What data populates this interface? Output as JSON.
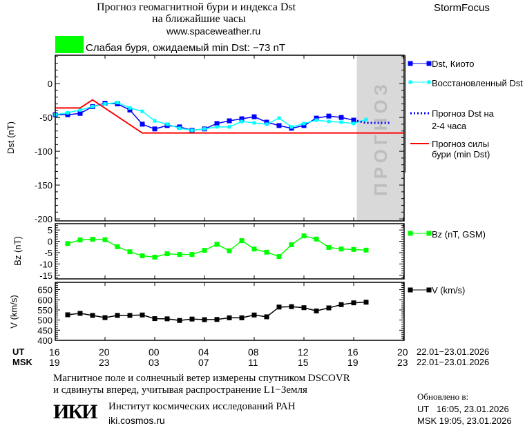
{
  "header": {
    "title_line1": "Прогноз геомагнитной бури и индекса Dst",
    "title_line2": "на ближайшие часы",
    "website": "www.spaceweather.ru",
    "brand": "StormFocus",
    "status_text": "Слабая буря, ожидаемый min Dst: −73 nT",
    "status_color": "#00ff00"
  },
  "forecast_zone_label": "ПРОГНОЗ",
  "time_axis": {
    "ut_label": "UT",
    "msk_label": "MSK",
    "ut_ticks": [
      "16",
      "20",
      "00",
      "04",
      "08",
      "12",
      "16",
      "20"
    ],
    "msk_ticks": [
      "19",
      "23",
      "03",
      "07",
      "11",
      "15",
      "19",
      "23"
    ],
    "ut_dates": "22.01−23.01.2026",
    "msk_dates": "22.01−23.01.2026"
  },
  "chart_data": [
    {
      "type": "line",
      "ylabel": "Dst (nT)",
      "ylim": [
        -203,
        42
      ],
      "yticks": [
        0,
        -50,
        -100,
        -150,
        -200
      ],
      "xlim": [
        "22.01 16:00 UT",
        "23.01 20:00 UT"
      ],
      "forecast_region_start": "23.01 16:15 UT",
      "series": [
        {
          "name": "Dst, Киото",
          "color": "#0000ff",
          "marker": "square",
          "x": [
            "22.01 16:00",
            "22.01 17:00",
            "22.01 18:00",
            "22.01 19:00",
            "22.01 20:00",
            "22.01 21:00",
            "22.01 22:00",
            "22.01 23:00",
            "23.01 00:00",
            "23.01 01:00",
            "23.01 02:00",
            "23.01 03:00",
            "23.01 04:00",
            "23.01 05:00",
            "23.01 06:00",
            "23.01 07:00",
            "23.01 08:00",
            "23.01 09:00",
            "23.01 10:00",
            "23.01 11:00",
            "23.01 12:00",
            "23.01 13:00",
            "23.01 14:00",
            "23.01 15:00",
            "23.01 16:00"
          ],
          "values": [
            -46,
            -46,
            -44,
            -34,
            -29,
            -30,
            -39,
            -60,
            -67,
            -62,
            -64,
            -69,
            -67,
            -59,
            -55,
            -52,
            -49,
            -57,
            -62,
            -66,
            -62,
            -51,
            -48,
            -50,
            -54
          ]
        },
        {
          "name": "Восстановленный Dst",
          "color": "#00ffff",
          "marker": "square",
          "x": [
            "22.01 16:00",
            "22.01 17:00",
            "22.01 18:00",
            "22.01 19:00",
            "22.01 20:00",
            "22.01 21:00",
            "22.01 22:00",
            "22.01 23:00",
            "23.01 00:00",
            "23.01 01:00",
            "23.01 02:00",
            "23.01 03:00",
            "23.01 04:00",
            "23.01 05:00",
            "23.01 06:00",
            "23.01 07:00",
            "23.01 08:00",
            "23.01 09:00",
            "23.01 10:00",
            "23.01 11:00",
            "23.01 12:00",
            "23.01 13:00",
            "23.01 14:00",
            "23.01 15:00",
            "23.01 16:00",
            "23.01 17:00"
          ],
          "values": [
            -46,
            -43,
            -39,
            -34,
            -30,
            -28,
            -36,
            -41,
            -55,
            -60,
            -66,
            -69,
            -67,
            -64,
            -64,
            -56,
            -58,
            -60,
            -51,
            -64,
            -59,
            -54,
            -56,
            -57,
            -59,
            -53
          ]
        },
        {
          "name": "Прогноз Dst на 2-4 часа",
          "color": "#0000ff",
          "style": "dotted",
          "x": [
            "23.01 16:00",
            "23.01 17:00",
            "23.01 19:00"
          ],
          "values": [
            -54,
            -58,
            -58
          ]
        },
        {
          "name": "Прогноз силы бури (min Dst)",
          "color": "#ff0000",
          "x": [
            "22.01 16:00",
            "22.01 18:00",
            "22.01 19:00",
            "22.01 23:00",
            "23.01 20:00"
          ],
          "values": [
            -36,
            -36,
            -24,
            -73,
            -73
          ]
        }
      ]
    },
    {
      "type": "line",
      "ylabel": "Bz (nT)",
      "ylim": [
        -16.6,
        7.8
      ],
      "yticks": [
        5,
        0,
        -5,
        -10,
        -15
      ],
      "series": [
        {
          "name": "Bz (nT, GSM)",
          "color": "#00ff00",
          "marker": "square",
          "x": [
            "22.01 17:00",
            "22.01 18:00",
            "22.01 19:00",
            "22.01 20:00",
            "22.01 21:00",
            "22.01 22:00",
            "22.01 23:00",
            "23.01 00:00",
            "23.01 01:00",
            "23.01 02:00",
            "23.01 03:00",
            "23.01 04:00",
            "23.01 05:00",
            "23.01 06:00",
            "23.01 07:00",
            "23.01 08:00",
            "23.01 09:00",
            "23.01 10:00",
            "23.01 11:00",
            "23.01 12:00",
            "23.01 13:00",
            "23.01 14:00",
            "23.01 15:00",
            "23.01 16:00",
            "23.01 17:00"
          ],
          "values": [
            -1.0,
            0.6,
            0.9,
            0.7,
            -2.4,
            -4.6,
            -6.4,
            -7.0,
            -5.5,
            -5.8,
            -5.8,
            -4.0,
            -1.3,
            -4.2,
            0.3,
            -3.4,
            -4.8,
            -6.7,
            -1.5,
            2.4,
            1.0,
            -2.7,
            -3.4,
            -3.6,
            -3.9
          ]
        }
      ]
    },
    {
      "type": "line",
      "ylabel": "V (km/s)",
      "ylim": [
        400,
        686
      ],
      "yticks": [
        650,
        600,
        550,
        500,
        450,
        400
      ],
      "series": [
        {
          "name": "V (km/s)",
          "color": "#000000",
          "marker": "square",
          "x": [
            "22.01 17:00",
            "22.01 18:00",
            "22.01 19:00",
            "22.01 20:00",
            "22.01 21:00",
            "22.01 22:00",
            "22.01 23:00",
            "23.01 00:00",
            "23.01 01:00",
            "23.01 02:00",
            "23.01 03:00",
            "23.01 04:00",
            "23.01 05:00",
            "23.01 06:00",
            "23.01 07:00",
            "23.01 08:00",
            "23.01 09:00",
            "23.01 10:00",
            "23.01 11:00",
            "23.01 12:00",
            "23.01 13:00",
            "23.01 14:00",
            "23.01 15:00",
            "23.01 16:00",
            "23.01 17:00"
          ],
          "values": [
            526,
            533,
            523,
            512,
            523,
            523,
            525,
            507,
            506,
            498,
            505,
            502,
            503,
            511,
            511,
            525,
            516,
            564,
            566,
            561,
            545,
            560,
            576,
            585,
            588
          ]
        }
      ]
    }
  ],
  "footer": {
    "note_line1": "Магнитное поле и солнечный ветер измерены спутником DSCOVR",
    "note_line2": "и сдвинуты вперед, учитывая распространение L1−Земля",
    "logo_text": "ИКИ",
    "institute": "Институт космических исследований РАН",
    "institute_url": "iki.cosmos.ru",
    "updated_label": "Обновлено в:",
    "updated_ut": "UT   16:05, 23.01.2026",
    "updated_msk": "MSK 19:05, 23.01.2026"
  }
}
